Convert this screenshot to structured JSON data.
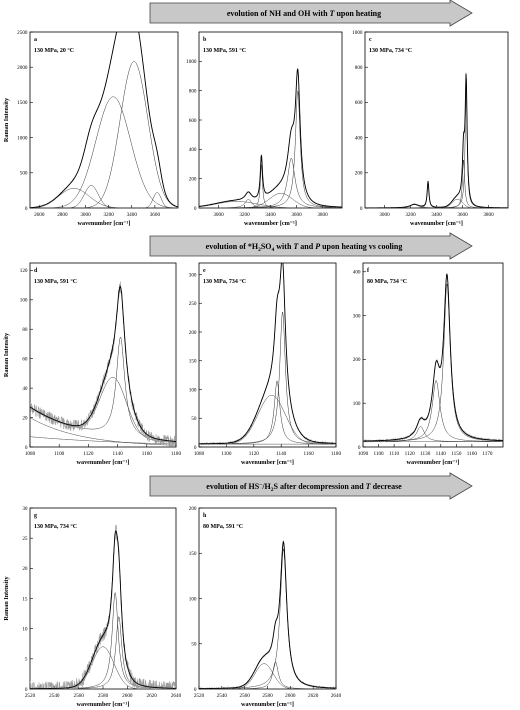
{
  "figure": {
    "common": {
      "ylabel": "Raman Intensity",
      "xlabel": "wavenumber [cm⁻¹]"
    },
    "banners": [
      {
        "id": "row1",
        "segments": [
          {
            "t": "evolution of NH and OH with "
          },
          {
            "t": "T",
            "i": true
          },
          {
            "t": " upon heating"
          }
        ]
      },
      {
        "id": "row2",
        "segments": [
          {
            "t": "evolution of *H"
          },
          {
            "t": "2",
            "sub": true
          },
          {
            "t": "SO"
          },
          {
            "t": "4",
            "sub": true
          },
          {
            "t": " with "
          },
          {
            "t": "T",
            "i": true
          },
          {
            "t": " and "
          },
          {
            "t": "P",
            "i": true
          },
          {
            "t": " upon heating vs cooling"
          }
        ]
      },
      {
        "id": "row3",
        "segments": [
          {
            "t": "evolution of HS"
          },
          {
            "t": "−",
            "sup": true
          },
          {
            "t": "/H"
          },
          {
            "t": "2",
            "sub": true
          },
          {
            "t": "S after decompression and "
          },
          {
            "t": "T",
            "i": true
          },
          {
            "t": " decrease"
          }
        ]
      }
    ]
  },
  "chart_data": [
    {
      "id": "a",
      "type": "line",
      "panel_label": "a",
      "condition": "130 MPa, 20 °C",
      "xlim": [
        2520,
        3800
      ],
      "ylim": [
        0,
        2500
      ],
      "xticks": [
        2600,
        2800,
        3000,
        3200,
        3400,
        3600
      ],
      "yticks": [
        0,
        500,
        1000,
        1500,
        2000,
        2500
      ],
      "xlabel": "wavenumber [cm⁻¹]",
      "ylabel": "Raman Intensity",
      "peaks": [
        {
          "center": 2900,
          "amp": 280,
          "width": 130,
          "shape": "gauss"
        },
        {
          "center": 3050,
          "amp": 320,
          "width": 60,
          "shape": "gauss"
        },
        {
          "center": 3240,
          "amp": 1580,
          "width": 150,
          "shape": "gauss"
        },
        {
          "center": 3420,
          "amp": 2080,
          "width": 120,
          "shape": "gauss"
        },
        {
          "center": 3620,
          "amp": 220,
          "width": 35,
          "shape": "gauss"
        }
      ],
      "noise": 8
    },
    {
      "id": "b",
      "type": "line",
      "panel_label": "b",
      "condition": "130 MPa, 591 °C",
      "xlim": [
        2850,
        3950
      ],
      "ylim": [
        0,
        1200
      ],
      "xticks": [
        3000,
        3200,
        3400,
        3600,
        3800
      ],
      "yticks": [
        0,
        200,
        400,
        600,
        800,
        1000
      ],
      "xlabel": "wavenumber [cm⁻¹]",
      "ylabel": "",
      "peaks": [
        {
          "center": 3140,
          "amp": 45,
          "width": 160,
          "shape": "gauss"
        },
        {
          "center": 3230,
          "amp": 60,
          "width": 30,
          "shape": "lor"
        },
        {
          "center": 3330,
          "amp": 300,
          "width": 10,
          "shape": "lor"
        },
        {
          "center": 3480,
          "amp": 100,
          "width": 90,
          "shape": "gauss"
        },
        {
          "center": 3560,
          "amp": 340,
          "width": 35,
          "shape": "lor"
        },
        {
          "center": 3610,
          "amp": 800,
          "width": 22,
          "shape": "lor"
        }
      ],
      "noise": 3
    },
    {
      "id": "c",
      "type": "line",
      "panel_label": "c",
      "condition": "130 MPa, 734 °C",
      "xlim": [
        2850,
        3950
      ],
      "ylim": [
        0,
        1000
      ],
      "xticks": [
        3000,
        3200,
        3400,
        3600,
        3800
      ],
      "yticks": [
        0,
        200,
        400,
        600,
        800,
        1000
      ],
      "xlabel": "wavenumber [cm⁻¹]",
      "ylabel": "",
      "peaks": [
        {
          "center": 3230,
          "amp": 20,
          "width": 40,
          "shape": "lor"
        },
        {
          "center": 3335,
          "amp": 150,
          "width": 8,
          "shape": "lor"
        },
        {
          "center": 3560,
          "amp": 50,
          "width": 40,
          "shape": "gauss"
        },
        {
          "center": 3608,
          "amp": 280,
          "width": 10,
          "shape": "lor"
        },
        {
          "center": 3628,
          "amp": 700,
          "width": 9,
          "shape": "lor"
        }
      ],
      "noise": 2
    },
    {
      "id": "d",
      "type": "line",
      "panel_label": "d",
      "condition": "130 MPa, 591 °C",
      "xlim": [
        1080,
        1180
      ],
      "ylim": [
        0,
        125
      ],
      "xticks": [
        1080,
        1100,
        1120,
        1140,
        1160,
        1180
      ],
      "yticks": [
        0,
        20,
        40,
        60,
        80,
        100,
        120
      ],
      "xlabel": "wavenumber [cm⁻¹]",
      "ylabel": "Raman Intensity",
      "peaks": [
        {
          "center": 1137,
          "amp": 40,
          "width": 9,
          "shape": "gauss"
        },
        {
          "center": 1142,
          "amp": 68,
          "width": 3.5,
          "shape": "lor"
        }
      ],
      "baseline": [
        {
          "type": "decay",
          "amp": 20,
          "center": 1080,
          "width": 35
        },
        {
          "type": "decay",
          "amp": 7,
          "center": 1080,
          "width": 80
        }
      ],
      "noise": 4
    },
    {
      "id": "e",
      "type": "line",
      "panel_label": "e",
      "condition": "130 MPa, 734 °C",
      "xlim": [
        1080,
        1180
      ],
      "ylim": [
        0,
        320
      ],
      "xticks": [
        1080,
        1100,
        1120,
        1140,
        1160,
        1180
      ],
      "yticks": [
        0,
        50,
        100,
        150,
        200,
        250,
        300
      ],
      "xlabel": "wavenumber [cm⁻¹]",
      "ylabel": "",
      "peaks": [
        {
          "center": 1133,
          "amp": 85,
          "width": 10,
          "shape": "gauss"
        },
        {
          "center": 1137,
          "amp": 110,
          "width": 2.5,
          "shape": "lor"
        },
        {
          "center": 1141,
          "amp": 230,
          "width": 2.5,
          "shape": "lor"
        }
      ],
      "baseline": [
        {
          "type": "const",
          "amp": 5
        }
      ],
      "noise": 2
    },
    {
      "id": "f",
      "type": "line",
      "panel_label": "f",
      "condition": "80 MPa, 734 °C",
      "xlim": [
        1090,
        1180
      ],
      "ylim": [
        0,
        420
      ],
      "xticks": [
        1090,
        1100,
        1110,
        1120,
        1130,
        1140,
        1150,
        1160,
        1170
      ],
      "yticks": [
        0,
        100,
        200,
        300,
        400
      ],
      "xlabel": "wavenumber [cm⁻¹]",
      "ylabel": "",
      "peaks": [
        {
          "center": 1127,
          "amp": 35,
          "width": 3,
          "shape": "lor"
        },
        {
          "center": 1137,
          "amp": 140,
          "width": 3,
          "shape": "lor"
        },
        {
          "center": 1144,
          "amp": 360,
          "width": 2.5,
          "shape": "lor"
        }
      ],
      "baseline": [
        {
          "type": "const",
          "amp": 12
        }
      ],
      "noise": 3
    },
    {
      "id": "g",
      "type": "line",
      "panel_label": "g",
      "condition": "130 MPa, 734 °C",
      "xlim": [
        2520,
        2640
      ],
      "ylim": [
        0,
        30
      ],
      "xticks": [
        2520,
        2540,
        2560,
        2580,
        2600,
        2620,
        2640
      ],
      "yticks": [
        0,
        5,
        10,
        15,
        20,
        25,
        30
      ],
      "xlabel": "wavenumber [cm⁻¹]",
      "ylabel": "Raman Intensity",
      "peaks": [
        {
          "center": 2580,
          "amp": 7,
          "width": 9,
          "shape": "gauss"
        },
        {
          "center": 2590,
          "amp": 16,
          "width": 3,
          "shape": "lor"
        },
        {
          "center": 2593,
          "amp": 12,
          "width": 3,
          "shape": "lor"
        }
      ],
      "noise": 1.2
    },
    {
      "id": "h",
      "type": "line",
      "panel_label": "h",
      "condition": "80 MPa, 591 °C",
      "xlim": [
        2520,
        2640
      ],
      "ylim": [
        0,
        200
      ],
      "xticks": [
        2520,
        2540,
        2560,
        2580,
        2600,
        2620,
        2640
      ],
      "yticks": [
        0,
        50,
        100,
        150,
        200
      ],
      "xlabel": "wavenumber [cm⁻¹]",
      "ylabel": "",
      "peaks": [
        {
          "center": 2577,
          "amp": 28,
          "width": 8,
          "shape": "gauss"
        },
        {
          "center": 2587,
          "amp": 30,
          "width": 3,
          "shape": "lor"
        },
        {
          "center": 2594,
          "amp": 155,
          "width": 3.5,
          "shape": "lor"
        }
      ],
      "noise": 1
    }
  ]
}
